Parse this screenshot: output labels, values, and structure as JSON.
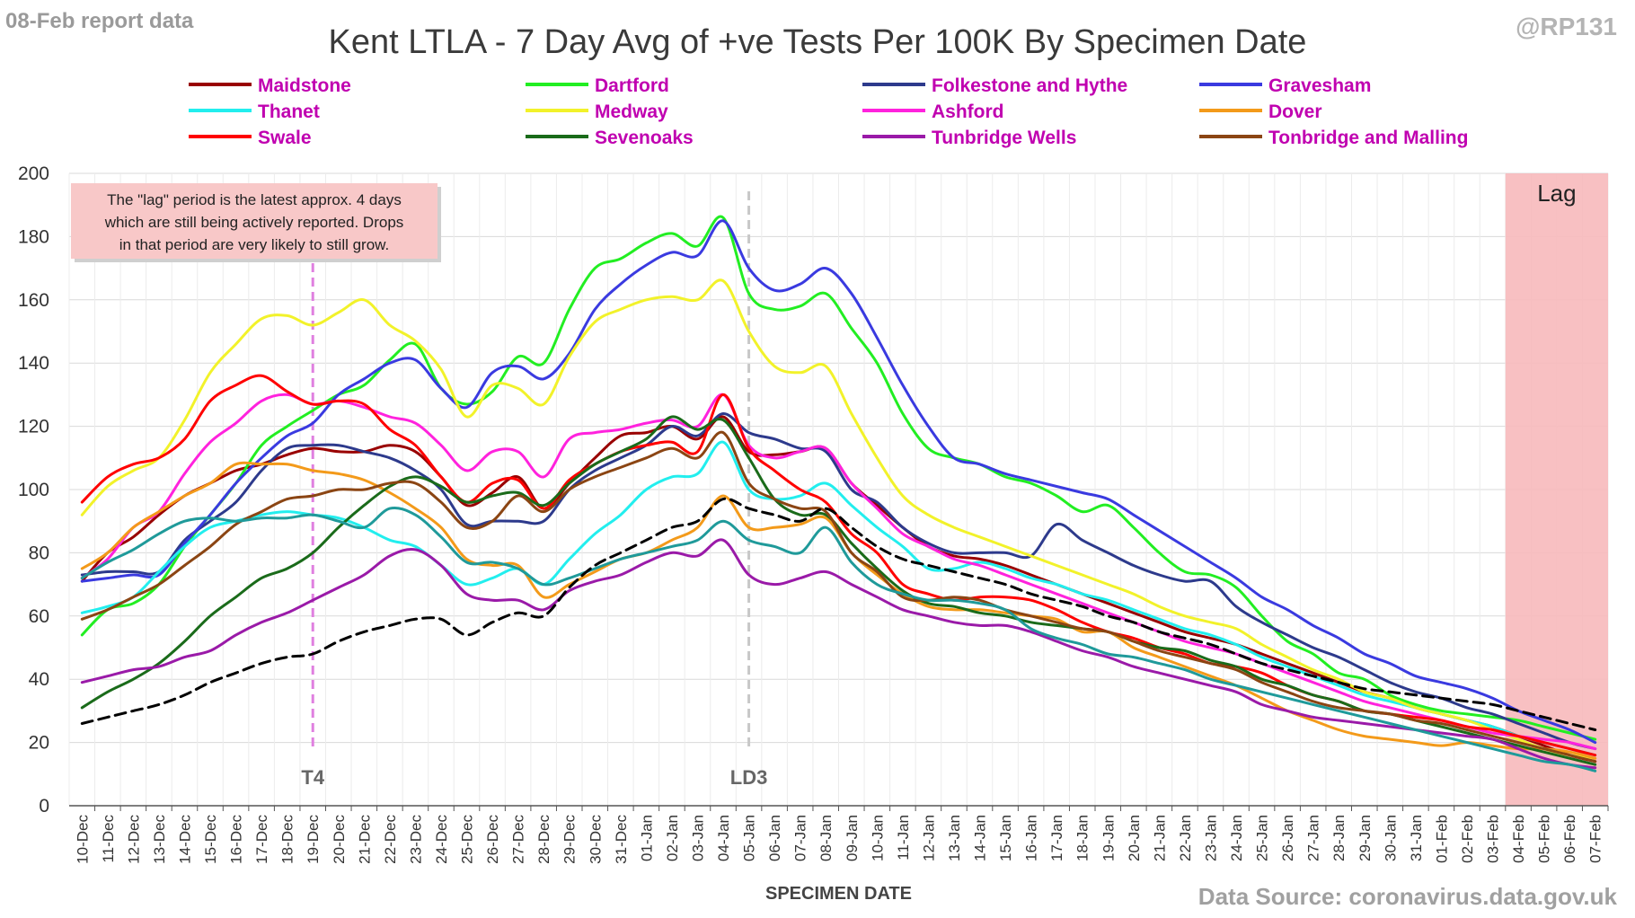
{
  "header": {
    "report_label": "08-Feb report data",
    "handle": "@RP131"
  },
  "footer": {
    "source": "Data Source: coronavirus.data.gov.uk"
  },
  "chart_data": {
    "type": "line",
    "title": "Kent  LTLA - 7 Day Avg of +ve Tests Per 100K By Specimen Date",
    "xlabel": "SPECIMEN DATE",
    "ylabel": "",
    "ylim": [
      0,
      200
    ],
    "yticks": [
      0,
      20,
      40,
      60,
      80,
      100,
      120,
      140,
      160,
      180,
      200
    ],
    "grid": true,
    "legend": "top",
    "categories": [
      "10-Dec",
      "11-Dec",
      "12-Dec",
      "13-Dec",
      "14-Dec",
      "15-Dec",
      "16-Dec",
      "17-Dec",
      "18-Dec",
      "19-Dec",
      "20-Dec",
      "21-Dec",
      "22-Dec",
      "23-Dec",
      "24-Dec",
      "25-Dec",
      "26-Dec",
      "27-Dec",
      "28-Dec",
      "29-Dec",
      "30-Dec",
      "31-Dec",
      "01-Jan",
      "02-Jan",
      "03-Jan",
      "04-Jan",
      "05-Jan",
      "06-Jan",
      "07-Jan",
      "08-Jan",
      "09-Jan",
      "10-Jan",
      "11-Jan",
      "12-Jan",
      "13-Jan",
      "14-Jan",
      "15-Jan",
      "16-Jan",
      "17-Jan",
      "18-Jan",
      "19-Jan",
      "20-Jan",
      "21-Jan",
      "22-Jan",
      "23-Jan",
      "24-Jan",
      "25-Jan",
      "26-Jan",
      "27-Jan",
      "28-Jan",
      "29-Jan",
      "30-Jan",
      "31-Jan",
      "01-Feb",
      "02-Feb",
      "03-Feb",
      "04-Feb",
      "05-Feb",
      "06-Feb",
      "07-Feb"
    ],
    "series": [
      {
        "name": "Maidstone",
        "color": "#990000",
        "values": [
          71,
          80,
          85,
          92,
          98,
          102,
          106,
          108,
          111,
          113,
          112,
          112,
          114,
          112,
          104,
          95,
          99,
          104,
          94,
          102,
          110,
          117,
          118,
          120,
          116,
          123,
          112,
          111,
          112,
          113,
          102,
          95,
          88,
          82,
          79,
          78,
          76,
          73,
          70,
          67,
          64,
          61,
          58,
          55,
          53,
          51,
          48,
          45,
          42,
          39,
          36,
          34,
          31,
          29,
          27,
          25,
          22,
          19,
          16,
          14
        ]
      },
      {
        "name": "Dartford",
        "color": "#22ee22",
        "values": [
          54,
          62,
          64,
          70,
          82,
          92,
          102,
          114,
          120,
          125,
          130,
          133,
          141,
          146,
          132,
          127,
          131,
          142,
          140,
          157,
          170,
          173,
          178,
          181,
          177,
          186,
          162,
          157,
          158,
          162,
          151,
          140,
          124,
          113,
          110,
          108,
          104,
          102,
          98,
          93,
          95,
          88,
          80,
          74,
          73,
          69,
          60,
          52,
          48,
          42,
          40,
          35,
          32,
          30,
          29,
          28,
          27,
          25,
          23,
          21
        ]
      },
      {
        "name": "Folkestone and Hythe",
        "color": "#2d3a8c",
        "values": [
          73,
          74,
          74,
          74,
          84,
          90,
          96,
          106,
          113,
          114,
          114,
          112,
          110,
          106,
          100,
          89,
          90,
          90,
          90,
          100,
          106,
          110,
          114,
          120,
          117,
          124,
          118,
          116,
          113,
          112,
          100,
          96,
          88,
          83,
          80,
          80,
          80,
          79,
          89,
          84,
          80,
          76,
          73,
          71,
          71,
          63,
          58,
          54,
          50,
          47,
          43,
          39,
          36,
          34,
          31,
          29,
          26,
          23,
          20,
          18
        ]
      },
      {
        "name": "Gravesham",
        "color": "#3a3ae0",
        "values": [
          71,
          72,
          73,
          73,
          83,
          92,
          102,
          110,
          117,
          121,
          130,
          135,
          140,
          141,
          132,
          126,
          137,
          139,
          135,
          143,
          157,
          165,
          171,
          175,
          174,
          185,
          170,
          163,
          165,
          170,
          162,
          148,
          133,
          120,
          110,
          108,
          105,
          103,
          101,
          99,
          97,
          92,
          87,
          82,
          77,
          72,
          66,
          62,
          57,
          53,
          48,
          45,
          41,
          39,
          37,
          34,
          30,
          27,
          24,
          20
        ]
      },
      {
        "name": "Thanet",
        "color": "#22eeee",
        "values": [
          61,
          63,
          66,
          74,
          82,
          88,
          90,
          92,
          93,
          92,
          91,
          88,
          84,
          82,
          76,
          70,
          72,
          75,
          70,
          78,
          86,
          92,
          100,
          104,
          105,
          115,
          100,
          97,
          98,
          102,
          95,
          88,
          82,
          75,
          75,
          77,
          75,
          72,
          70,
          67,
          65,
          62,
          59,
          56,
          54,
          51,
          47,
          44,
          41,
          38,
          35,
          33,
          31,
          29,
          27,
          25,
          22,
          20,
          18,
          16
        ]
      },
      {
        "name": "Medway",
        "color": "#f2f22a",
        "values": [
          92,
          101,
          106,
          110,
          122,
          137,
          146,
          154,
          155,
          152,
          156,
          160,
          152,
          147,
          138,
          123,
          133,
          132,
          127,
          142,
          153,
          157,
          160,
          161,
          160,
          166,
          150,
          139,
          137,
          139,
          124,
          110,
          98,
          92,
          88,
          85,
          82,
          79,
          76,
          73,
          70,
          67,
          63,
          60,
          58,
          56,
          51,
          47,
          43,
          40,
          36,
          34,
          31,
          29,
          27,
          24,
          21,
          18,
          16,
          15
        ]
      },
      {
        "name": "Ashford",
        "color": "#ff22dd",
        "values": [
          72,
          78,
          88,
          93,
          105,
          115,
          121,
          128,
          130,
          127,
          128,
          126,
          123,
          121,
          114,
          106,
          112,
          112,
          104,
          116,
          118,
          119,
          121,
          122,
          120,
          130,
          114,
          110,
          112,
          113,
          102,
          94,
          86,
          82,
          78,
          76,
          73,
          70,
          67,
          64,
          61,
          58,
          55,
          52,
          50,
          48,
          45,
          42,
          39,
          36,
          33,
          31,
          29,
          27,
          25,
          23,
          22,
          21,
          20,
          18
        ]
      },
      {
        "name": "Dover",
        "color": "#f39a1a",
        "values": [
          75,
          80,
          88,
          93,
          98,
          102,
          108,
          108,
          108,
          106,
          105,
          103,
          99,
          94,
          88,
          78,
          76,
          76,
          66,
          70,
          74,
          78,
          80,
          84,
          88,
          98,
          88,
          88,
          89,
          91,
          80,
          73,
          67,
          63,
          62,
          62,
          61,
          60,
          59,
          55,
          55,
          50,
          47,
          44,
          41,
          38,
          34,
          30,
          27,
          24,
          22,
          21,
          20,
          19,
          20,
          19,
          18,
          18,
          17,
          15
        ]
      },
      {
        "name": "Swale",
        "color": "#ff0000",
        "values": [
          96,
          104,
          108,
          110,
          116,
          128,
          133,
          136,
          131,
          127,
          128,
          127,
          119,
          114,
          104,
          96,
          102,
          103,
          94,
          103,
          108,
          112,
          114,
          115,
          112,
          130,
          113,
          106,
          100,
          96,
          86,
          80,
          70,
          67,
          65,
          66,
          66,
          65,
          62,
          58,
          55,
          53,
          50,
          48,
          45,
          44,
          42,
          38,
          35,
          33,
          30,
          29,
          28,
          27,
          25,
          24,
          22,
          20,
          18,
          16
        ]
      },
      {
        "name": "Sevenoaks",
        "color": "#1a6b1a",
        "values": [
          31,
          36,
          40,
          45,
          52,
          60,
          66,
          72,
          75,
          80,
          88,
          95,
          101,
          104,
          101,
          96,
          98,
          99,
          95,
          102,
          108,
          112,
          116,
          123,
          119,
          122,
          110,
          97,
          92,
          92,
          83,
          75,
          68,
          64,
          63,
          61,
          60,
          58,
          57,
          56,
          55,
          52,
          50,
          49,
          46,
          44,
          40,
          38,
          35,
          33,
          30,
          29,
          27,
          25,
          23,
          21,
          19,
          17,
          15,
          13
        ]
      },
      {
        "name": "Tunbridge Wells",
        "color": "#9a1aa8",
        "values": [
          39,
          41,
          43,
          44,
          47,
          49,
          54,
          58,
          61,
          65,
          69,
          73,
          79,
          81,
          76,
          67,
          65,
          65,
          62,
          68,
          71,
          73,
          77,
          80,
          79,
          84,
          73,
          70,
          72,
          74,
          70,
          66,
          62,
          60,
          58,
          57,
          57,
          55,
          52,
          49,
          47,
          44,
          42,
          40,
          38,
          36,
          32,
          30,
          28,
          27,
          26,
          25,
          24,
          23,
          22,
          21,
          18,
          15,
          13,
          12
        ]
      },
      {
        "name": "Tonbridge and Malling",
        "color": "#8b4513",
        "values": [
          59,
          62,
          66,
          70,
          76,
          82,
          89,
          93,
          97,
          98,
          100,
          100,
          102,
          102,
          96,
          88,
          90,
          98,
          93,
          100,
          104,
          107,
          110,
          113,
          110,
          118,
          102,
          97,
          94,
          93,
          80,
          74,
          66,
          65,
          66,
          65,
          62,
          60,
          58,
          56,
          55,
          52,
          49,
          47,
          45,
          43,
          39,
          36,
          33,
          31,
          30,
          29,
          27,
          26,
          24,
          22,
          20,
          18,
          16,
          14
        ]
      },
      {
        "name": "",
        "color": "#1f9a9a",
        "values": [
          72,
          77,
          81,
          86,
          90,
          91,
          90,
          91,
          91,
          92,
          90,
          88,
          94,
          92,
          85,
          77,
          77,
          75,
          70,
          72,
          75,
          78,
          80,
          82,
          84,
          90,
          84,
          82,
          80,
          88,
          77,
          70,
          67,
          65,
          65,
          64,
          62,
          56,
          53,
          51,
          48,
          47,
          45,
          43,
          40,
          38,
          36,
          34,
          32,
          30,
          28,
          26,
          24,
          22,
          20,
          18,
          16,
          14,
          13,
          11
        ]
      },
      {
        "name": "",
        "color": "#000000",
        "dashed": true,
        "values": [
          26,
          28,
          30,
          32,
          35,
          39,
          42,
          45,
          47,
          48,
          52,
          55,
          57,
          59,
          59,
          54,
          58,
          61,
          60,
          69,
          76,
          80,
          84,
          88,
          90,
          97,
          94,
          92,
          90,
          94,
          88,
          82,
          78,
          76,
          74,
          72,
          70,
          67,
          65,
          63,
          60,
          58,
          55,
          53,
          51,
          48,
          45,
          43,
          41,
          39,
          37,
          36,
          35,
          34,
          33,
          32,
          30,
          28,
          26,
          24
        ]
      }
    ],
    "annotations": {
      "note": "The \"lag\" period is the latest approx. 4 days which are still being actively reported. Drops in that period are very likely to still grow.",
      "lag_label": "Lag",
      "lag_start": "04-Feb",
      "markers": [
        {
          "label": "T4",
          "date": "19-Dec",
          "color": "#e080e0"
        },
        {
          "label": "LD3",
          "date": "05-Jan",
          "color": "#c8c8c8"
        }
      ]
    }
  }
}
